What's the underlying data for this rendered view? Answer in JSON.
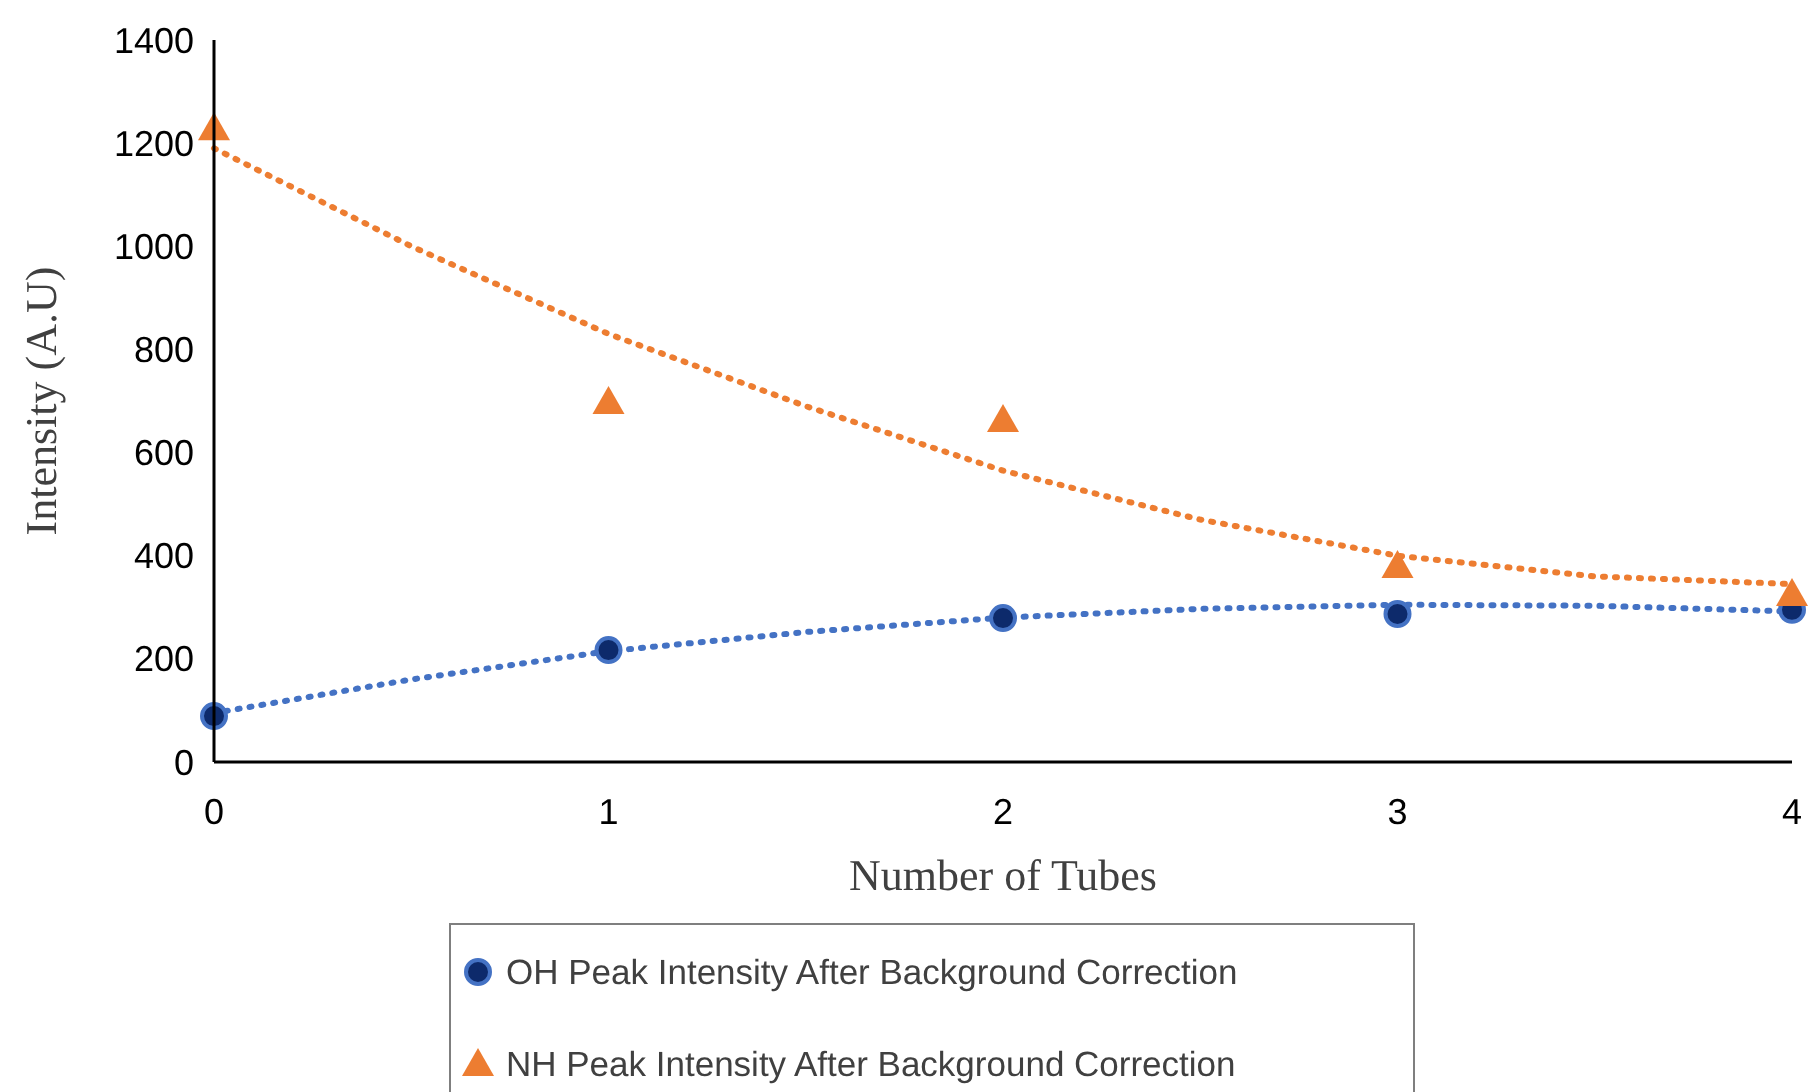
{
  "chart_data": {
    "type": "scatter",
    "xlabel": "Number of Tubes",
    "ylabel": "Intensity (A.U)",
    "xlim": [
      0,
      4
    ],
    "xticks": [
      0,
      1,
      2,
      3,
      4
    ],
    "ylim": [
      0,
      1400
    ],
    "yticks": [
      0,
      200,
      400,
      600,
      800,
      1000,
      1200,
      1400
    ],
    "grid": false,
    "legend": "bottom",
    "series": [
      {
        "name": "OH Peak Intensity After Background Correction",
        "color": "#0d2a6b",
        "marker": "circle",
        "x": [
          0,
          1,
          2,
          3,
          4
        ],
        "values": [
          89,
          217,
          279,
          287,
          295
        ]
      },
      {
        "name": "NH Peak Intensity After Background Correction",
        "color": "#ed7d31",
        "marker": "triangle",
        "x": [
          0,
          1,
          2,
          3,
          4
        ],
        "values": [
          1229,
          698,
          663,
          380,
          326
        ]
      },
      {
        "color": "#4472c4",
        "type": "line",
        "line_style": "dotted",
        "x": [
          0,
          0.5,
          1,
          1.5,
          2,
          2.5,
          3,
          3.5,
          4
        ],
        "values": [
          95,
          160,
          215,
          252,
          280,
          297,
          305,
          303,
          292
        ]
      },
      {
        "color": "#ed7d31",
        "type": "line",
        "line_style": "dotted",
        "x": [
          0,
          0.5,
          1,
          1.5,
          2,
          2.5,
          3,
          3.5,
          4
        ],
        "values": [
          1190,
          1000,
          830,
          690,
          565,
          470,
          400,
          360,
          345
        ]
      }
    ]
  }
}
